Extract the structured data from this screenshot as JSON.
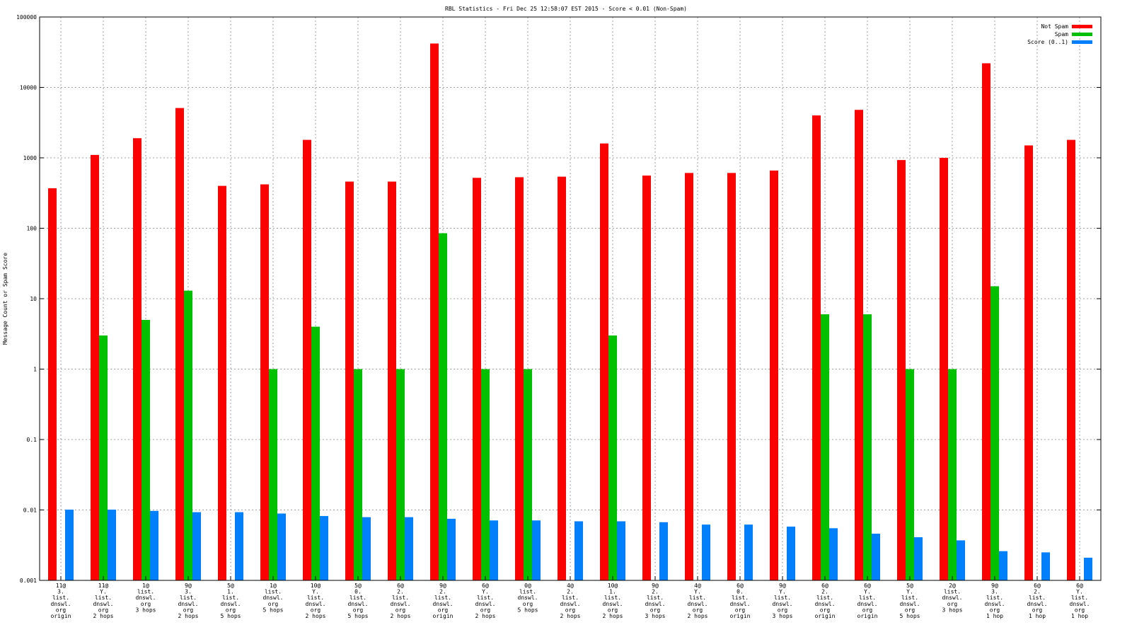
{
  "chart_data": {
    "type": "bar",
    "title": "RBL Statistics - Fri Dec 25 12:58:07 EST 2015 - Score < 0.01 (Non-Spam)",
    "ylabel": "Message Count or Spam Score",
    "xlabel": "",
    "yscale": "log",
    "ylim": [
      0.001,
      100000
    ],
    "grid": true,
    "legend_position": "top-right",
    "y_ticks": [
      "100000",
      "10000",
      "1000",
      "100",
      "10",
      "1",
      "0.1",
      "0.01",
      "0.001"
    ],
    "categories": [
      [
        "11@",
        "3.",
        "list.",
        "dnswl.",
        "org",
        "origin"
      ],
      [
        "11@",
        "Y.",
        "list.",
        "dnswl.",
        "org",
        "2 hops"
      ],
      [
        "1@",
        "list.",
        "dnswl.",
        "org",
        "3 hops"
      ],
      [
        "9@",
        "3.",
        "list.",
        "dnswl.",
        "org",
        "2 hops"
      ],
      [
        "5@",
        "1.",
        "list.",
        "dnswl.",
        "org",
        "5 hops"
      ],
      [
        "1@",
        "list.",
        "dnswl.",
        "org",
        "5 hops"
      ],
      [
        "10@",
        "Y.",
        "list.",
        "dnswl.",
        "org",
        "2 hops"
      ],
      [
        "5@",
        "0.",
        "list.",
        "dnswl.",
        "org",
        "5 hops"
      ],
      [
        "6@",
        "2.",
        "list.",
        "dnswl.",
        "org",
        "2 hops"
      ],
      [
        "9@",
        "2.",
        "list.",
        "dnswl.",
        "org",
        "origin"
      ],
      [
        "6@",
        "Y.",
        "list.",
        "dnswl.",
        "org",
        "2 hops"
      ],
      [
        "0@",
        "list.",
        "dnswl.",
        "org",
        "5 hops"
      ],
      [
        "4@",
        "2.",
        "list.",
        "dnswl.",
        "org",
        "2 hops"
      ],
      [
        "10@",
        "1.",
        "list.",
        "dnswl.",
        "org",
        "2 hops"
      ],
      [
        "9@",
        "2.",
        "list.",
        "dnswl.",
        "org",
        "3 hops"
      ],
      [
        "4@",
        "Y.",
        "list.",
        "dnswl.",
        "org",
        "2 hops"
      ],
      [
        "6@",
        "0.",
        "list.",
        "dnswl.",
        "org",
        "origin"
      ],
      [
        "9@",
        "Y.",
        "list.",
        "dnswl.",
        "org",
        "3 hops"
      ],
      [
        "6@",
        "2.",
        "list.",
        "dnswl.",
        "org",
        "origin"
      ],
      [
        "6@",
        "Y.",
        "list.",
        "dnswl.",
        "org",
        "origin"
      ],
      [
        "5@",
        "Y.",
        "list.",
        "dnswl.",
        "org",
        "5 hops"
      ],
      [
        "2@",
        "list.",
        "dnswl.",
        "org",
        "3 hops"
      ],
      [
        "9@",
        "3.",
        "list.",
        "dnswl.",
        "org",
        "1 hop"
      ],
      [
        "6@",
        "2.",
        "list.",
        "dnswl.",
        "org",
        "1 hop"
      ],
      [
        "6@",
        "Y.",
        "list.",
        "dnswl.",
        "org",
        "1 hop"
      ]
    ],
    "series": [
      {
        "name": "Not Spam",
        "color": "#ff0000",
        "values": [
          370,
          1100,
          1900,
          5100,
          400,
          420,
          1800,
          460,
          460,
          42000,
          520,
          530,
          540,
          1600,
          560,
          610,
          610,
          660,
          4000,
          4800,
          930,
          1000,
          22000,
          1500,
          1800
        ]
      },
      {
        "name": "Spam",
        "color": "#00c000",
        "values": [
          null,
          3,
          5,
          13,
          null,
          1,
          4,
          1,
          1,
          85,
          1,
          1,
          null,
          3,
          null,
          null,
          null,
          null,
          6,
          6,
          1,
          1,
          15,
          null,
          null
        ]
      },
      {
        "name": "Score (0..1)",
        "color": "#0080ff",
        "values": [
          0.0101,
          0.0101,
          0.0097,
          0.0093,
          0.0093,
          0.0089,
          0.0082,
          0.0079,
          0.0079,
          0.0075,
          0.0071,
          0.0071,
          0.0069,
          0.0069,
          0.0067,
          0.0062,
          0.0062,
          0.0058,
          0.0055,
          0.0046,
          0.0041,
          0.0037,
          0.0026,
          0.0025,
          0.0021
        ]
      }
    ]
  }
}
